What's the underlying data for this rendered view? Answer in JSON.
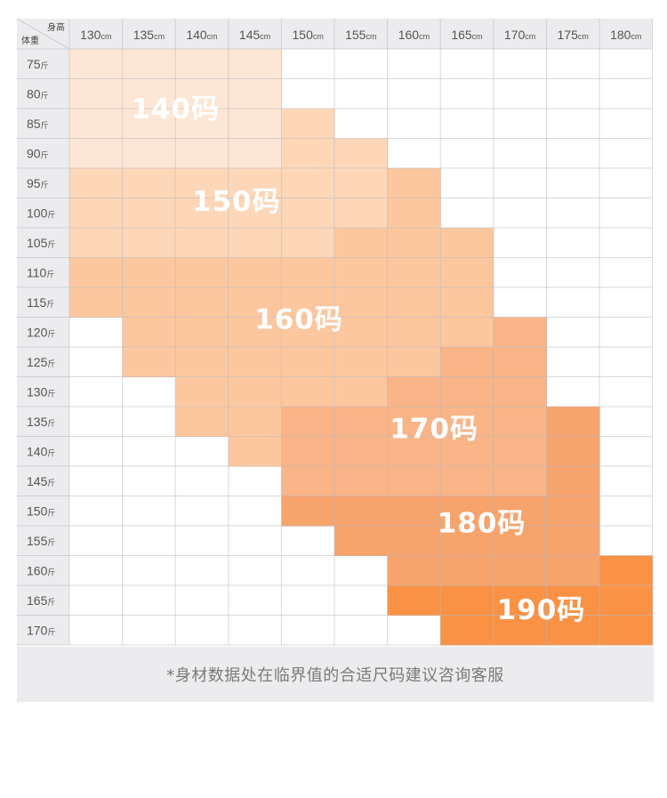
{
  "chart_data": {
    "type": "heatmap",
    "corner": {
      "col_header": "身高",
      "row_header": "体重"
    },
    "height_unit": "cm",
    "weight_unit": "斤",
    "heights": [
      "130",
      "135",
      "140",
      "145",
      "150",
      "155",
      "160",
      "165",
      "170",
      "175",
      "180"
    ],
    "weights": [
      "75",
      "80",
      "85",
      "90",
      "95",
      "100",
      "105",
      "110",
      "115",
      "120",
      "125",
      "130",
      "135",
      "140",
      "145",
      "150",
      "155",
      "160",
      "165",
      "170"
    ],
    "sizes": [
      {
        "label": "140码",
        "color": "#fde6d5"
      },
      {
        "label": "150码",
        "color": "#fdd7b8"
      },
      {
        "label": "160码",
        "color": "#fcc79f"
      },
      {
        "label": "170码",
        "color": "#f9b487"
      },
      {
        "label": "180码",
        "color": "#f7a36c"
      },
      {
        "label": "190码",
        "color": "#fa9245"
      }
    ],
    "grid": [
      [
        0,
        0,
        0,
        0,
        -1,
        -1,
        -1,
        -1,
        -1,
        -1,
        -1
      ],
      [
        0,
        0,
        0,
        0,
        -1,
        -1,
        -1,
        -1,
        -1,
        -1,
        -1
      ],
      [
        0,
        0,
        0,
        0,
        1,
        -1,
        -1,
        -1,
        -1,
        -1,
        -1
      ],
      [
        0,
        0,
        0,
        0,
        1,
        1,
        -1,
        -1,
        -1,
        -1,
        -1
      ],
      [
        1,
        1,
        1,
        1,
        1,
        1,
        2,
        -1,
        -1,
        -1,
        -1
      ],
      [
        1,
        1,
        1,
        1,
        1,
        1,
        2,
        -1,
        -1,
        -1,
        -1
      ],
      [
        1,
        1,
        1,
        1,
        1,
        2,
        2,
        2,
        -1,
        -1,
        -1
      ],
      [
        2,
        2,
        2,
        2,
        2,
        2,
        2,
        2,
        -1,
        -1,
        -1
      ],
      [
        2,
        2,
        2,
        2,
        2,
        2,
        2,
        2,
        -1,
        -1,
        -1
      ],
      [
        -1,
        2,
        2,
        2,
        2,
        2,
        2,
        2,
        3,
        -1,
        -1
      ],
      [
        -1,
        2,
        2,
        2,
        2,
        2,
        2,
        3,
        3,
        -1,
        -1
      ],
      [
        -1,
        -1,
        2,
        2,
        2,
        2,
        3,
        3,
        3,
        -1,
        -1
      ],
      [
        -1,
        -1,
        2,
        2,
        3,
        3,
        3,
        3,
        3,
        4,
        -1
      ],
      [
        -1,
        -1,
        -1,
        2,
        3,
        3,
        3,
        3,
        3,
        4,
        -1
      ],
      [
        -1,
        -1,
        -1,
        -1,
        3,
        3,
        3,
        3,
        3,
        4,
        -1
      ],
      [
        -1,
        -1,
        -1,
        -1,
        4,
        4,
        4,
        4,
        4,
        4,
        -1
      ],
      [
        -1,
        -1,
        -1,
        -1,
        -1,
        4,
        4,
        4,
        4,
        4,
        -1
      ],
      [
        -1,
        -1,
        -1,
        -1,
        -1,
        -1,
        4,
        4,
        4,
        4,
        5
      ],
      [
        -1,
        -1,
        -1,
        -1,
        -1,
        -1,
        5,
        5,
        5,
        5,
        5
      ],
      [
        -1,
        -1,
        -1,
        -1,
        -1,
        -1,
        -1,
        5,
        5,
        5,
        5
      ]
    ]
  },
  "note": "*身材数据处在临界值的合适尺码建议咨询客服"
}
